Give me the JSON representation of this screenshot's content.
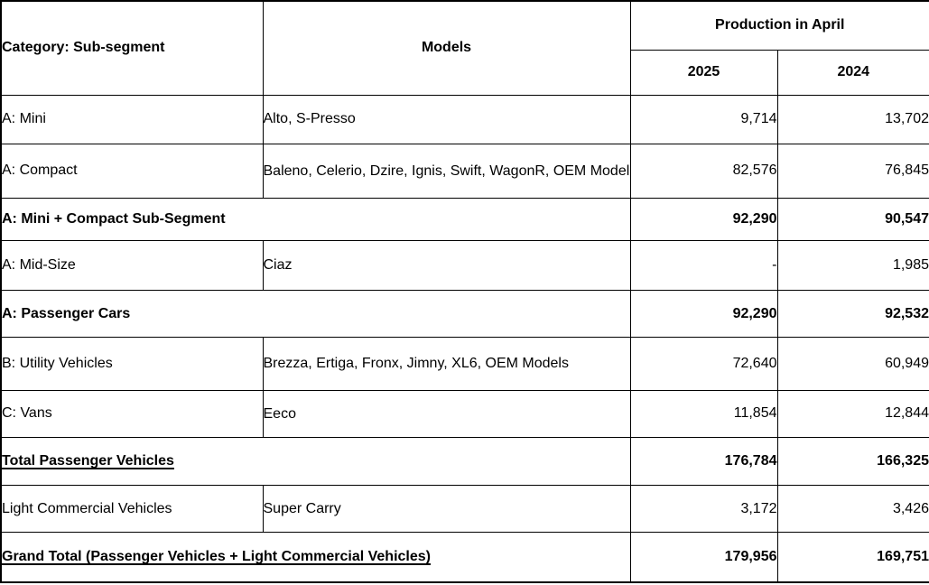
{
  "table": {
    "header": {
      "category": "Category: Sub-segment",
      "models": "Models",
      "production_group": "Production in April",
      "year_2025": "2025",
      "year_2024": "2024"
    },
    "rows": [
      {
        "type": "data",
        "category": "A: Mini",
        "models": "Alto, S-Presso",
        "production_2025": "9,714",
        "production_2024": "13,702"
      },
      {
        "type": "data",
        "category": "A: Compact",
        "models": "Baleno, Celerio, Dzire, Ignis, Swift, WagonR, OEM Model",
        "production_2025": "82,576",
        "production_2024": "76,845"
      },
      {
        "type": "subtotal",
        "label": "A: Mini + Compact Sub-Segment",
        "production_2025": "92,290",
        "production_2024": "90,547"
      },
      {
        "type": "data",
        "category": "A: Mid-Size",
        "models": "Ciaz",
        "production_2025": "-",
        "production_2024": "1,985"
      },
      {
        "type": "subtotal",
        "label": "A: Passenger Cars",
        "production_2025": "92,290",
        "production_2024": "92,532"
      },
      {
        "type": "data",
        "category": "B: Utility Vehicles",
        "models": "Brezza, Ertiga, Fronx, Jimny, XL6, OEM Models",
        "production_2025": "72,640",
        "production_2024": "60,949"
      },
      {
        "type": "data",
        "category": "C: Vans",
        "models": "Eeco",
        "production_2025": "11,854",
        "production_2024": "12,844"
      },
      {
        "type": "total",
        "label": "Total Passenger Vehicles",
        "production_2025": "176,784",
        "production_2024": "166,325"
      },
      {
        "type": "data",
        "category": "Light Commercial Vehicles",
        "models": "Super Carry",
        "production_2025": "3,172",
        "production_2024": "3,426"
      },
      {
        "type": "total",
        "label": "Grand Total (Passenger Vehicles + Light Commercial Vehicles)",
        "production_2025": "179,956",
        "production_2024": "169,751"
      }
    ]
  },
  "colors": {
    "text": "#000000",
    "border": "#000000",
    "background": "#ffffff"
  }
}
